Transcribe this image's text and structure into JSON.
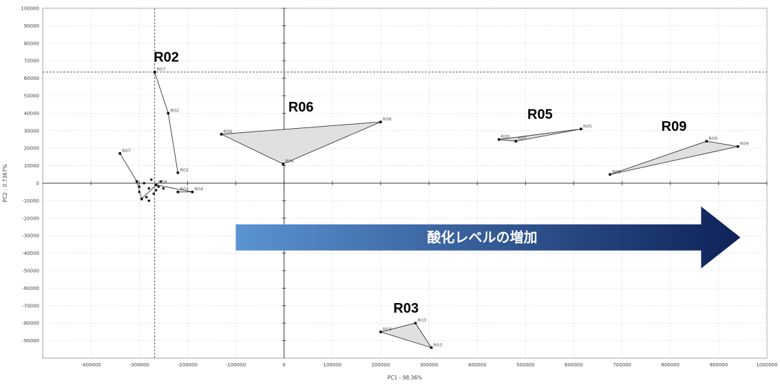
{
  "chart_data": {
    "type": "scatter",
    "xlabel": "PC1 - 98.36%",
    "ylabel": "PC2 - 0.7367%",
    "xlim": [
      -500000,
      1000000
    ],
    "ylim": [
      -100000,
      100000
    ],
    "x_ticks": [
      -400000,
      -300000,
      -200000,
      -100000,
      0,
      100000,
      200000,
      300000,
      400000,
      500000,
      600000,
      700000,
      800000,
      900000,
      1000000
    ],
    "y_ticks": [
      100000,
      90000,
      80000,
      70000,
      60000,
      50000,
      40000,
      30000,
      20000,
      10000,
      0,
      -10000,
      -20000,
      -30000,
      -40000,
      -50000,
      -60000,
      -70000,
      -80000,
      -90000
    ],
    "grid": true,
    "crosshair": {
      "x": -268000,
      "y": 63500
    },
    "groups": [
      {
        "name": "R02",
        "shaded": false,
        "points": [
          {
            "label": "R07",
            "x": -268000,
            "y": 63500
          },
          {
            "label": "R02",
            "x": -240000,
            "y": 40000
          },
          {
            "label": "R02",
            "x": -220000,
            "y": 6000
          }
        ]
      },
      {
        "name": "R06",
        "shaded": true,
        "points": [
          {
            "label": "R06",
            "x": -130000,
            "y": 28000
          },
          {
            "label": "R06",
            "x": 200000,
            "y": 35000
          },
          {
            "label": "R06",
            "x": -2000,
            "y": 11000
          }
        ]
      },
      {
        "name": "R05",
        "shaded": true,
        "points": [
          {
            "label": "R05",
            "x": 445000,
            "y": 25000
          },
          {
            "label": "R05",
            "x": 480000,
            "y": 24000
          },
          {
            "label": "R05",
            "x": 615000,
            "y": 31000
          }
        ]
      },
      {
        "name": "R09",
        "shaded": true,
        "points": [
          {
            "label": "R09",
            "x": 675000,
            "y": 5000
          },
          {
            "label": "R09",
            "x": 875000,
            "y": 24000
          },
          {
            "label": "R09",
            "x": 940000,
            "y": 21000
          }
        ]
      },
      {
        "name": "R03",
        "shaded": true,
        "points": [
          {
            "label": "R03",
            "x": 200000,
            "y": -85000
          },
          {
            "label": "R03",
            "x": 272000,
            "y": -80000
          },
          {
            "label": "R03",
            "x": 305000,
            "y": -94000
          }
        ]
      },
      {
        "name": "",
        "shaded": false,
        "points": [
          {
            "label": "R07",
            "x": -340000,
            "y": 17000
          },
          {
            "label": "",
            "x": -305000,
            "y": 1000
          },
          {
            "label": "",
            "x": -295000,
            "y": -9000
          },
          {
            "label": "R08",
            "x": -265000,
            "y": -1000
          },
          {
            "label": "R04",
            "x": -190000,
            "y": -5000
          },
          {
            "label": "R04",
            "x": -220000,
            "y": -5000
          }
        ]
      }
    ],
    "cluster_points": [
      [
        -300000,
        -5000
      ],
      [
        -290000,
        0
      ],
      [
        -280000,
        -3000
      ],
      [
        -275000,
        2000
      ],
      [
        -285000,
        -8000
      ],
      [
        -270000,
        -6000
      ],
      [
        -260000,
        -2000
      ],
      [
        -255000,
        1000
      ],
      [
        -280000,
        -10000
      ],
      [
        -300000,
        -2000
      ],
      [
        -265000,
        -4000
      ],
      [
        -250000,
        -3000
      ]
    ],
    "annotation": {
      "text": "酸化レベルの増加",
      "x_start": -100000,
      "x_end": 945000,
      "y": -31000
    }
  },
  "colors": {
    "shade": "#e0e0e0",
    "line": "#333333",
    "arrow_start": "#5b93d3",
    "arrow_end": "#0e2258"
  }
}
